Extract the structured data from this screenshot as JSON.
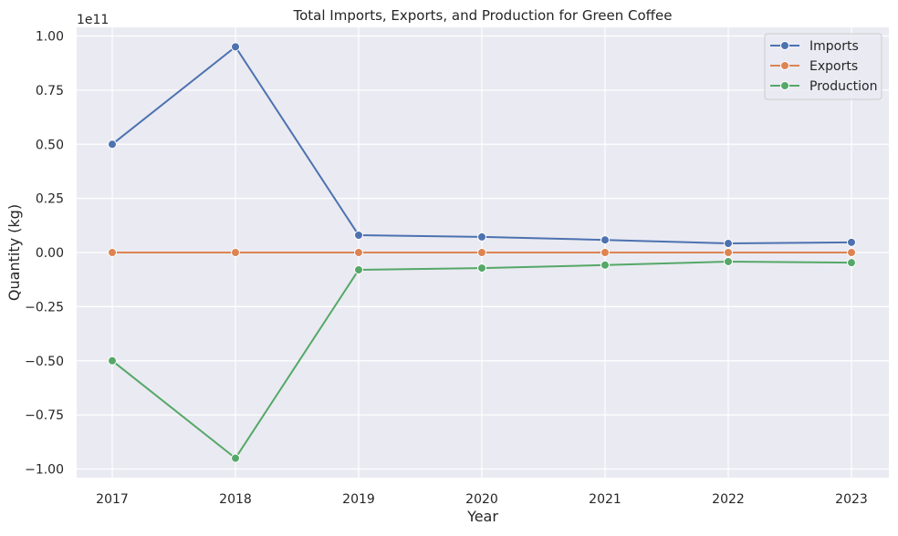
{
  "chart_data": {
    "type": "line",
    "title": "Total Imports, Exports, and Production for Green Coffee",
    "xlabel": "Year",
    "ylabel": "Quantity (kg)",
    "offset_label": "1e11",
    "x": [
      "2017",
      "2018",
      "2019",
      "2020",
      "2021",
      "2022",
      "2023"
    ],
    "ylim": [
      -1.04,
      1.04
    ],
    "yticks": [
      "1.00",
      "0.75",
      "0.50",
      "0.25",
      "0.00",
      "−0.25",
      "−0.50",
      "−0.75",
      "−1.00"
    ],
    "ytick_values": [
      1.0,
      0.75,
      0.5,
      0.25,
      0.0,
      -0.25,
      -0.5,
      -0.75,
      -1.0
    ],
    "grid": true,
    "legend_position": "top-right",
    "series": [
      {
        "name": "Imports",
        "color": "#4c72b0",
        "values": [
          0.5,
          0.95,
          0.08,
          0.072,
          0.058,
          0.042,
          0.047
        ]
      },
      {
        "name": "Exports",
        "color": "#dd8452",
        "values": [
          0.0,
          0.0,
          0.0,
          0.0,
          0.0,
          0.0,
          0.0
        ]
      },
      {
        "name": "Production",
        "color": "#55a868",
        "values": [
          -0.5,
          -0.95,
          -0.08,
          -0.072,
          -0.058,
          -0.042,
          -0.047
        ]
      }
    ]
  }
}
